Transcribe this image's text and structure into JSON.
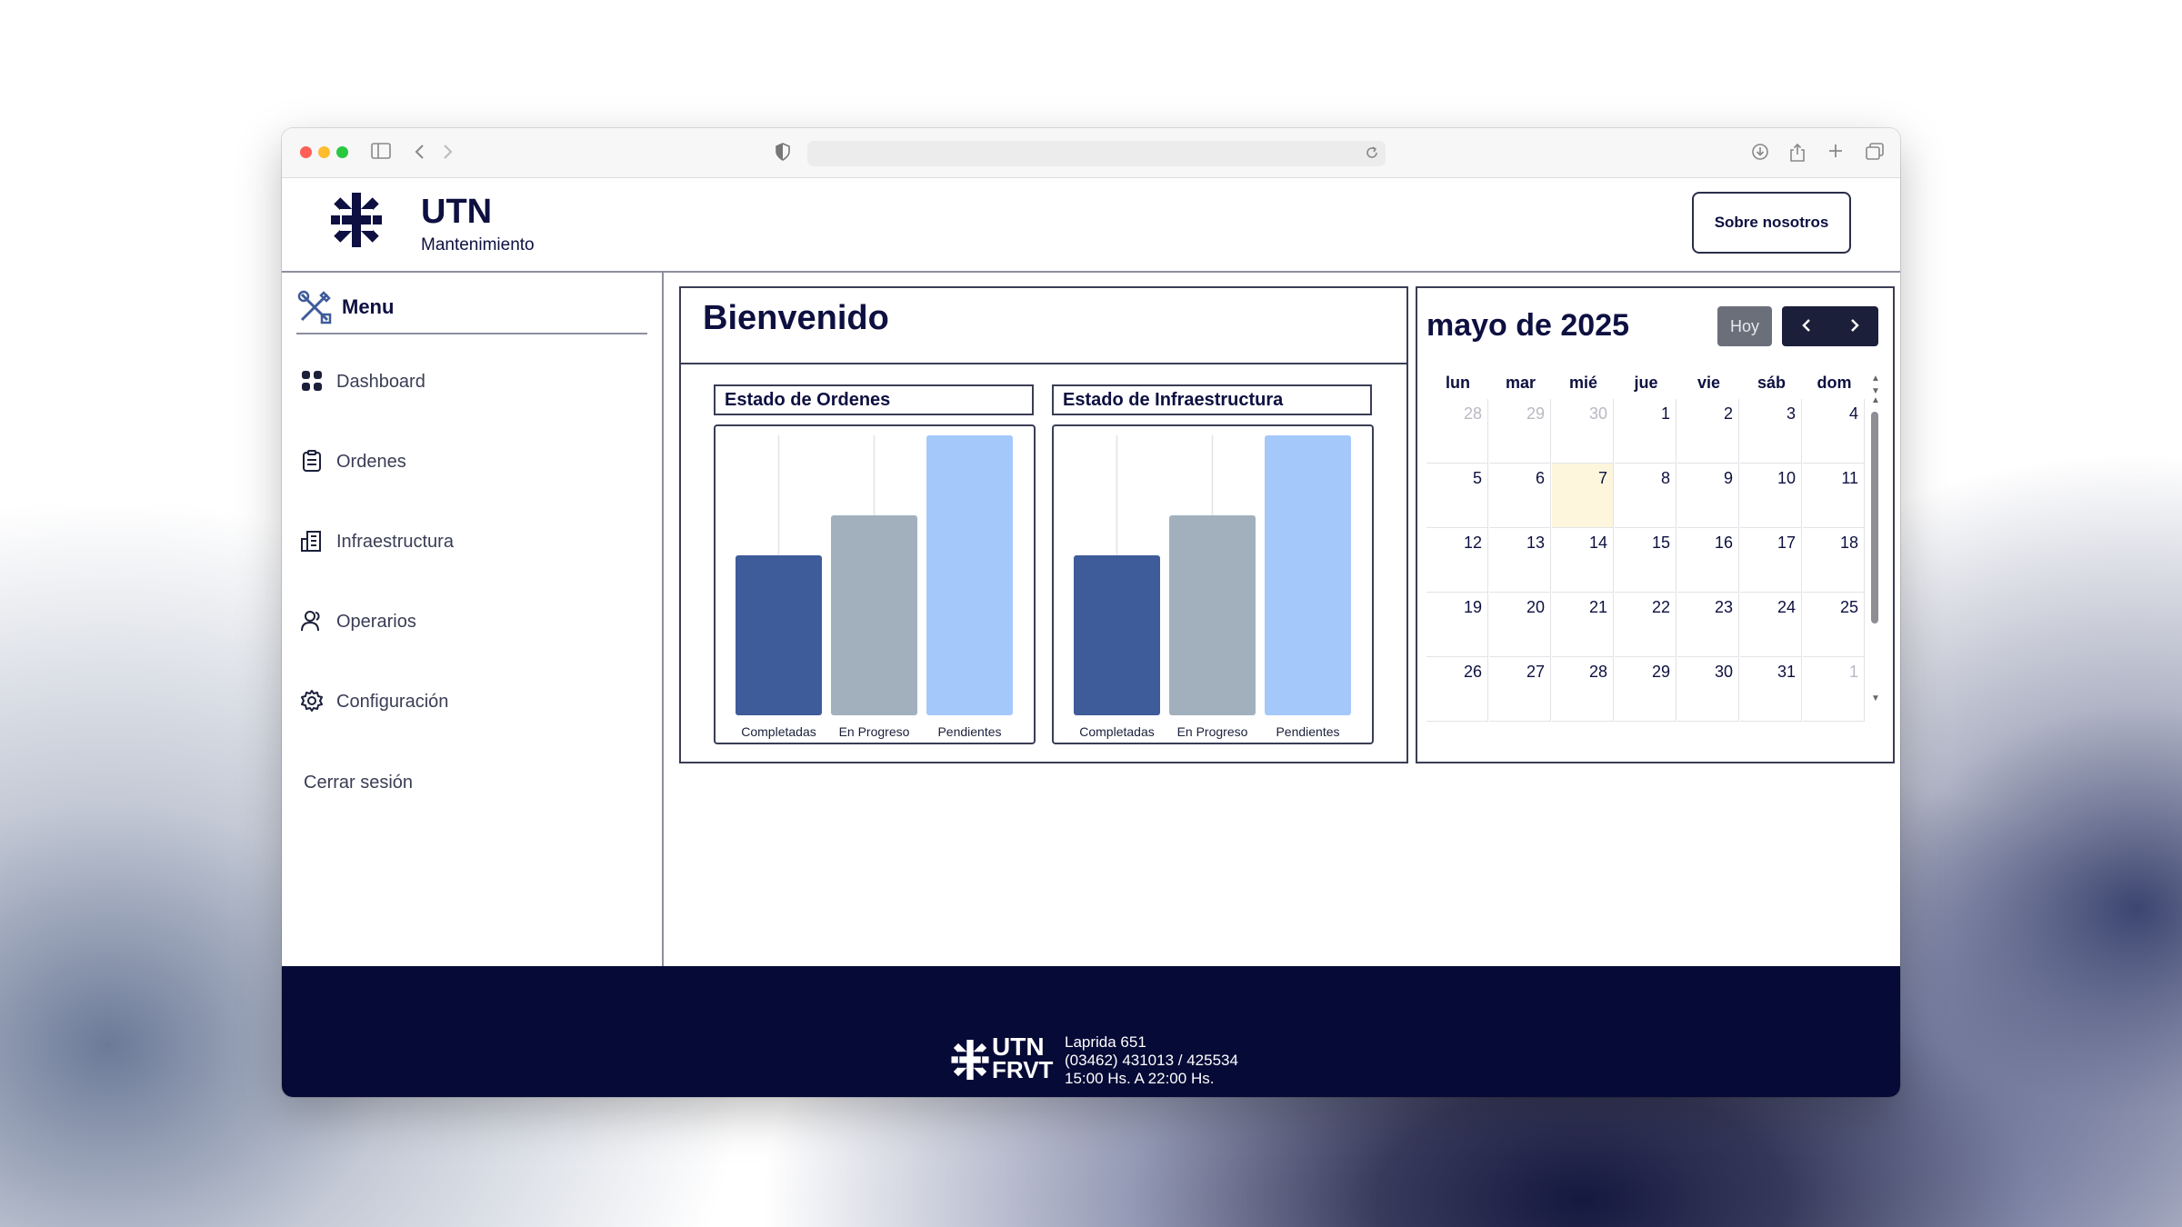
{
  "header": {
    "brand_title": "UTN",
    "brand_subtitle": "Mantenimiento",
    "about_button": "Sobre nosotros"
  },
  "sidebar": {
    "menu_label": "Menu",
    "items": [
      {
        "label": "Dashboard",
        "icon": "grid-icon"
      },
      {
        "label": "Ordenes",
        "icon": "clipboard-icon"
      },
      {
        "label": "Infraestructura",
        "icon": "building-icon"
      },
      {
        "label": "Operarios",
        "icon": "users-icon"
      },
      {
        "label": "Configuración",
        "icon": "gear-icon"
      }
    ],
    "logout_label": "Cerrar sesión"
  },
  "welcome": {
    "title": "Bienvenido",
    "charts": [
      {
        "title": "Estado de Ordenes"
      },
      {
        "title": "Estado de Infraestructura"
      }
    ]
  },
  "chart_data": [
    {
      "type": "bar",
      "title": "Estado de Ordenes",
      "categories": [
        "Completadas",
        "En Progreso",
        "Pendientes"
      ],
      "values": [
        2,
        2.5,
        3.5
      ],
      "colors": [
        "#3e5b9a",
        "#a2b0be",
        "#a5c8fb"
      ]
    },
    {
      "type": "bar",
      "title": "Estado de Infraestructura",
      "categories": [
        "Completadas",
        "En Progreso",
        "Pendientes"
      ],
      "values": [
        2,
        2.5,
        3.5
      ],
      "colors": [
        "#3e5b9a",
        "#a2b0be",
        "#a5c8fb"
      ]
    }
  ],
  "calendar": {
    "title": "mayo de 2025",
    "today_button": "Hoy",
    "weekdays": [
      "lun",
      "mar",
      "mié",
      "jue",
      "vie",
      "sáb",
      "dom"
    ],
    "weeks": [
      [
        {
          "d": "28",
          "m": true
        },
        {
          "d": "29",
          "m": true
        },
        {
          "d": "30",
          "m": true
        },
        {
          "d": "1"
        },
        {
          "d": "2"
        },
        {
          "d": "3"
        },
        {
          "d": "4"
        }
      ],
      [
        {
          "d": "5"
        },
        {
          "d": "6"
        },
        {
          "d": "7",
          "today": true
        },
        {
          "d": "8"
        },
        {
          "d": "9"
        },
        {
          "d": "10"
        },
        {
          "d": "11"
        }
      ],
      [
        {
          "d": "12"
        },
        {
          "d": "13"
        },
        {
          "d": "14"
        },
        {
          "d": "15"
        },
        {
          "d": "16"
        },
        {
          "d": "17"
        },
        {
          "d": "18"
        }
      ],
      [
        {
          "d": "19"
        },
        {
          "d": "20"
        },
        {
          "d": "21"
        },
        {
          "d": "22"
        },
        {
          "d": "23"
        },
        {
          "d": "24"
        },
        {
          "d": "25"
        }
      ],
      [
        {
          "d": "26"
        },
        {
          "d": "27"
        },
        {
          "d": "28"
        },
        {
          "d": "29"
        },
        {
          "d": "30"
        },
        {
          "d": "31"
        },
        {
          "d": "1",
          "m": true
        }
      ]
    ]
  },
  "footer": {
    "address": "Laprida 651",
    "phone": "(03462) 431013 / 425534",
    "hours": "15:00 Hs. A 22:00 Hs.",
    "logo_text_top": "UTN",
    "logo_text_bottom": "FRVT"
  },
  "colors": {
    "brand_navy": "#0d1040",
    "footer_bg": "#060a36",
    "today_highlight": "#fdf6dc"
  }
}
